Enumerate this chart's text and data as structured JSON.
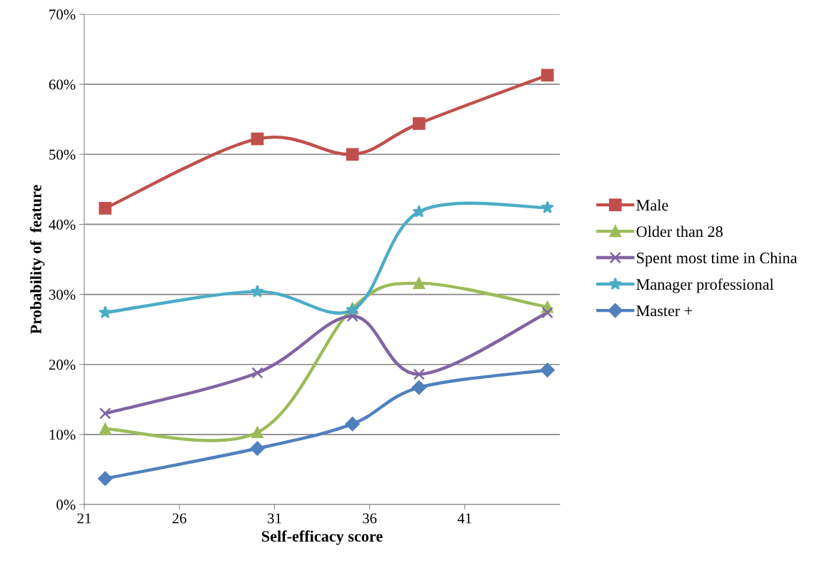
{
  "chart_data": {
    "type": "line",
    "xlabel": "Self-efficacy score",
    "ylabel": "Probability of  feature",
    "x": [
      22.1,
      30.1,
      35.1,
      38.6,
      45.35
    ],
    "xlim": [
      21,
      46
    ],
    "xticks": [
      21,
      26,
      31,
      36,
      41
    ],
    "ylim": [
      0,
      70
    ],
    "yticks": [
      {
        "value": 0,
        "label": "0%"
      },
      {
        "value": 10,
        "label": "10%"
      },
      {
        "value": 20,
        "label": "20%"
      },
      {
        "value": 30,
        "label": "30%"
      },
      {
        "value": 40,
        "label": "40%"
      },
      {
        "value": 50,
        "label": "50%"
      },
      {
        "value": 60,
        "label": "60%"
      },
      {
        "value": 70,
        "label": "70%"
      }
    ],
    "grid": "y",
    "legend": "right",
    "series": [
      {
        "name": "Male",
        "color": "#c0504d",
        "marker": "square",
        "values": [
          42.3,
          52.2,
          50.0,
          54.4,
          61.3
        ]
      },
      {
        "name": "Older than 28",
        "color": "#9bbb59",
        "marker": "triangle",
        "values": [
          10.8,
          10.3,
          28.0,
          31.6,
          28.2
        ]
      },
      {
        "name": "Spent most time in China",
        "color": "#8064a2",
        "marker": "cross",
        "values": [
          13.0,
          18.8,
          26.9,
          18.6,
          27.4
        ]
      },
      {
        "name": "Manager professional",
        "color": "#4bacc6",
        "marker": "star",
        "values": [
          27.4,
          30.4,
          27.8,
          41.8,
          42.4
        ]
      },
      {
        "name": "Master +",
        "color": "#4f81bd",
        "marker": "diamond",
        "values": [
          3.7,
          8.0,
          11.5,
          16.7,
          19.2
        ]
      }
    ]
  }
}
